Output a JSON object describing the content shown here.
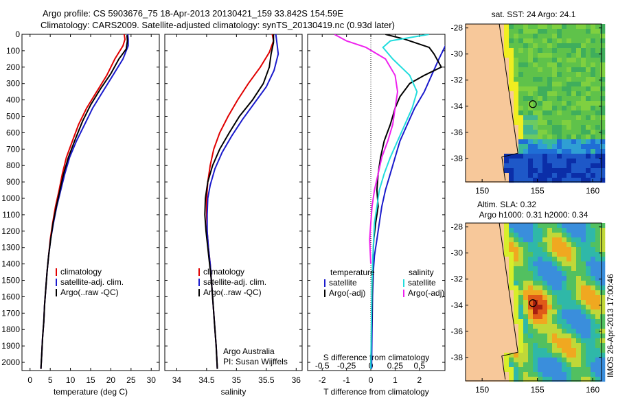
{
  "header": {
    "line1": "Argo profile: CS 5903676_75 18-Apr-2013 20130421_159 33.842S 154.59E",
    "line2": "Climatology: CARS2009. Satellite-adjusted climatology: synTS_20130419.nc (0.93d later)"
  },
  "colors": {
    "climatology": "#e00000",
    "satellite": "#1a1acc",
    "argo": "#000000",
    "s_sat": "#22dddd",
    "s_argo": "#ee22ee",
    "land": "#f7c89a"
  },
  "chart_data": [
    {
      "type": "line",
      "id": "temperature",
      "xlabel": "temperature (deg C)",
      "ylabel": "",
      "xlim": [
        -2,
        32
      ],
      "ylim": [
        2050,
        0
      ],
      "xticks": [
        "0",
        "5",
        "10",
        "15",
        "20",
        "25",
        "30"
      ],
      "xtick_values": [
        0,
        5,
        10,
        15,
        20,
        25,
        30
      ],
      "yticks": [
        "0",
        "100",
        "200",
        "300",
        "400",
        "500",
        "600",
        "700",
        "800",
        "900",
        "1000",
        "1100",
        "1200",
        "1300",
        "1400",
        "1500",
        "1600",
        "1700",
        "1800",
        "1900",
        "2000"
      ],
      "legend": [
        "climatology",
        "satellite-adj. clim.",
        "Argo(..raw -QC)"
      ],
      "series": [
        {
          "name": "climatology",
          "color_key": "climatology",
          "points": [
            [
              23.3,
              0
            ],
            [
              23.5,
              30
            ],
            [
              23,
              70
            ],
            [
              21,
              150
            ],
            [
              19,
              250
            ],
            [
              16.5,
              350
            ],
            [
              14,
              450
            ],
            [
              12,
              550
            ],
            [
              10.5,
              650
            ],
            [
              9,
              750
            ],
            [
              8,
              850
            ],
            [
              7.2,
              950
            ],
            [
              6.3,
              1050
            ],
            [
              5.6,
              1150
            ],
            [
              5,
              1250
            ],
            [
              4.6,
              1350
            ],
            [
              4.2,
              1450
            ],
            [
              3.9,
              1550
            ],
            [
              3.6,
              1650
            ],
            [
              3.4,
              1750
            ],
            [
              3.1,
              1850
            ],
            [
              2.9,
              1950
            ],
            [
              2.7,
              2040
            ]
          ]
        },
        {
          "name": "satellite-adj. clim.",
          "color_key": "satellite",
          "points": [
            [
              24.2,
              0
            ],
            [
              24.3,
              30
            ],
            [
              24.3,
              70
            ],
            [
              23,
              150
            ],
            [
              20.5,
              250
            ],
            [
              18,
              350
            ],
            [
              15.5,
              450
            ],
            [
              13.5,
              550
            ],
            [
              11.5,
              650
            ],
            [
              9.8,
              750
            ],
            [
              8.6,
              850
            ],
            [
              7.6,
              950
            ],
            [
              6.6,
              1050
            ],
            [
              5.8,
              1150
            ],
            [
              5.1,
              1250
            ],
            [
              4.6,
              1350
            ],
            [
              4.2,
              1450
            ],
            [
              3.9,
              1550
            ],
            [
              3.6,
              1650
            ],
            [
              3.4,
              1750
            ],
            [
              3.1,
              1850
            ],
            [
              2.9,
              1950
            ],
            [
              2.7,
              2040
            ]
          ]
        },
        {
          "name": "Argo(..raw -QC)",
          "color_key": "argo",
          "points": [
            [
              24,
              5
            ],
            [
              24.1,
              40
            ],
            [
              23.8,
              90
            ],
            [
              22,
              150
            ],
            [
              20,
              240
            ],
            [
              17.5,
              330
            ],
            [
              15,
              430
            ],
            [
              13,
              530
            ],
            [
              11.2,
              640
            ],
            [
              9.5,
              750
            ],
            [
              8.3,
              850
            ],
            [
              7.4,
              950
            ],
            [
              6.5,
              1050
            ],
            [
              5.7,
              1150
            ],
            [
              5.1,
              1250
            ],
            [
              4.6,
              1350
            ],
            [
              4.2,
              1450
            ],
            [
              3.9,
              1550
            ],
            [
              3.6,
              1650
            ],
            [
              3.4,
              1750
            ],
            [
              3.1,
              1850
            ],
            [
              2.9,
              1950
            ],
            [
              2.7,
              2040
            ]
          ]
        }
      ]
    },
    {
      "type": "line",
      "id": "salinity",
      "xlabel": "salinity",
      "ylabel": "",
      "xlim": [
        33.8,
        36.1
      ],
      "ylim": [
        2050,
        0
      ],
      "xticks": [
        "34",
        "34.5",
        "35",
        "35.5",
        "36"
      ],
      "xtick_values": [
        34,
        34.5,
        35,
        35.5,
        36
      ],
      "legend": [
        "climatology",
        "satellite-adj. clim.",
        "Argo(..raw -QC)"
      ],
      "annotation": [
        "Argo Australia",
        "PI: Susan Wijffels"
      ],
      "series": [
        {
          "name": "climatology",
          "color_key": "climatology",
          "points": [
            [
              35.6,
              0
            ],
            [
              35.62,
              40
            ],
            [
              35.55,
              110
            ],
            [
              35.4,
              200
            ],
            [
              35.2,
              300
            ],
            [
              35.02,
              400
            ],
            [
              34.86,
              500
            ],
            [
              34.72,
              600
            ],
            [
              34.62,
              700
            ],
            [
              34.56,
              800
            ],
            [
              34.52,
              900
            ],
            [
              34.5,
              1000
            ],
            [
              34.5,
              1100
            ],
            [
              34.51,
              1200
            ],
            [
              34.53,
              1300
            ],
            [
              34.56,
              1400
            ],
            [
              34.58,
              1500
            ],
            [
              34.6,
              1600
            ],
            [
              34.62,
              1700
            ],
            [
              34.64,
              1800
            ],
            [
              34.66,
              1900
            ],
            [
              34.68,
              2040
            ]
          ]
        },
        {
          "name": "satellite-adj. clim.",
          "color_key": "satellite",
          "points": [
            [
              35.66,
              0
            ],
            [
              35.68,
              60
            ],
            [
              35.7,
              120
            ],
            [
              35.63,
              220
            ],
            [
              35.5,
              320
            ],
            [
              35.3,
              420
            ],
            [
              35.1,
              520
            ],
            [
              34.92,
              620
            ],
            [
              34.76,
              720
            ],
            [
              34.64,
              820
            ],
            [
              34.56,
              920
            ],
            [
              34.52,
              1000
            ],
            [
              34.51,
              1100
            ],
            [
              34.51,
              1200
            ],
            [
              34.53,
              1300
            ],
            [
              34.56,
              1400
            ],
            [
              34.58,
              1500
            ],
            [
              34.6,
              1600
            ],
            [
              34.62,
              1700
            ],
            [
              34.64,
              1800
            ],
            [
              34.66,
              1900
            ],
            [
              34.68,
              2040
            ]
          ]
        },
        {
          "name": "Argo(..raw -QC)",
          "color_key": "argo",
          "points": [
            [
              35.62,
              0
            ],
            [
              35.62,
              50
            ],
            [
              35.58,
              120
            ],
            [
              35.55,
              200
            ],
            [
              35.45,
              300
            ],
            [
              35.27,
              400
            ],
            [
              35.05,
              500
            ],
            [
              34.88,
              600
            ],
            [
              34.72,
              700
            ],
            [
              34.6,
              800
            ],
            [
              34.52,
              900
            ],
            [
              34.48,
              1000
            ],
            [
              34.47,
              1100
            ],
            [
              34.49,
              1200
            ],
            [
              34.52,
              1300
            ],
            [
              34.55,
              1400
            ],
            [
              34.58,
              1500
            ],
            [
              34.6,
              1600
            ],
            [
              34.62,
              1700
            ],
            [
              34.64,
              1800
            ],
            [
              34.66,
              1900
            ],
            [
              34.68,
              2040
            ]
          ]
        }
      ]
    },
    {
      "type": "line",
      "id": "difference",
      "xlabel": "T difference from climatology",
      "xlabel_top": "S difference from climatology",
      "xlim": [
        -2.6,
        3.05
      ],
      "ylim": [
        2050,
        0
      ],
      "xticks": [
        "-2",
        "-1",
        "0",
        "1",
        "2"
      ],
      "xtick_values": [
        -2,
        -1,
        0,
        1,
        2
      ],
      "xticks2": [
        "-0.5",
        "-0.25",
        "0",
        "0.25",
        "0.5"
      ],
      "xtick2_values": [
        -2,
        -1,
        0,
        1,
        2
      ],
      "legend_t_title": "temperature",
      "legend_s_title": "salinity",
      "legend": [
        "satellite",
        "Argo(-adj)",
        "satellite",
        "Argo(-adj)"
      ],
      "series": [
        {
          "name": "satellite",
          "color_key": "satellite",
          "points": [
            [
              3.1,
              60
            ],
            [
              3.0,
              90
            ],
            [
              2.8,
              150
            ],
            [
              2.5,
              250
            ],
            [
              2.2,
              350
            ],
            [
              1.8,
              450
            ],
            [
              1.5,
              550
            ],
            [
              1.2,
              650
            ],
            [
              1,
              750
            ],
            [
              0.8,
              850
            ],
            [
              0.6,
              950
            ],
            [
              0.45,
              1050
            ],
            [
              0.35,
              1150
            ],
            [
              0.25,
              1250
            ],
            [
              0.15,
              1350
            ],
            [
              0.1,
              1450
            ],
            [
              0.07,
              1600
            ],
            [
              0.05,
              1800
            ],
            [
              0.03,
              2040
            ]
          ]
        },
        {
          "name": "Argo(-adj)",
          "color_key": "argo",
          "points": [
            [
              0.6,
              0
            ],
            [
              1.4,
              30
            ],
            [
              2,
              60
            ],
            [
              2.4,
              80
            ],
            [
              2.6,
              120
            ],
            [
              2.9,
              200
            ],
            [
              2.2,
              250
            ],
            [
              1.6,
              300
            ],
            [
              1.2,
              380
            ],
            [
              1,
              450
            ],
            [
              0.8,
              550
            ],
            [
              0.55,
              650
            ],
            [
              0.4,
              750
            ],
            [
              0.3,
              850
            ],
            [
              0.25,
              950
            ],
            [
              0.3,
              1050
            ],
            [
              0.2,
              1150
            ],
            [
              0.12,
              1250
            ],
            [
              0.08,
              1400
            ],
            [
              0.05,
              1600
            ],
            [
              0.03,
              1800
            ],
            [
              0,
              2040
            ]
          ]
        },
        {
          "name": "satellite",
          "color_key": "s_sat",
          "points": [
            [
              2.4,
              0
            ],
            [
              0.8,
              40
            ],
            [
              0.5,
              80
            ],
            [
              0.9,
              150
            ],
            [
              1.6,
              250
            ],
            [
              1.9,
              350
            ],
            [
              1.7,
              450
            ],
            [
              1.4,
              550
            ],
            [
              1.1,
              650
            ],
            [
              0.8,
              750
            ],
            [
              0.55,
              850
            ],
            [
              0.35,
              950
            ],
            [
              0.25,
              1050
            ],
            [
              0.15,
              1150
            ],
            [
              0.1,
              1300
            ],
            [
              0.05,
              1500
            ],
            [
              0.03,
              1700
            ],
            [
              0,
              2040
            ]
          ]
        },
        {
          "name": "Argo(-adj)",
          "color_key": "s_argo",
          "points": [
            [
              -1.5,
              0
            ],
            [
              -1,
              40
            ],
            [
              -0.2,
              80
            ],
            [
              0.6,
              150
            ],
            [
              1.0,
              250
            ],
            [
              1.1,
              350
            ],
            [
              1.0,
              450
            ],
            [
              0.9,
              550
            ],
            [
              0.7,
              650
            ],
            [
              0.45,
              750
            ],
            [
              0.3,
              850
            ],
            [
              0.15,
              950
            ],
            [
              0.05,
              1050
            ],
            [
              0,
              1150
            ],
            [
              -0.05,
              1250
            ],
            [
              0,
              1400
            ]
          ]
        }
      ]
    }
  ],
  "maps": [
    {
      "id": "sst",
      "title": "sat. SST: 24 Argo: 24.1",
      "lon": [
        148.5,
        160.8
      ],
      "lat": [
        -39.8,
        -27.7
      ],
      "xticks": [
        "150",
        "155",
        "160"
      ],
      "yticks": [
        "-28",
        "-30",
        "-32",
        "-34",
        "-36",
        "-38"
      ],
      "float_lon": 154.59,
      "float_lat": -33.842
    },
    {
      "id": "sla",
      "title1": "Altim. SLA: 0.32",
      "title2": "Argo h1000: 0.31 h2000: 0.34",
      "lon": [
        148.5,
        160.8
      ],
      "lat": [
        -39.8,
        -27.7
      ],
      "xticks": [
        "150",
        "155",
        "160"
      ],
      "yticks": [
        "-28",
        "-30",
        "-32",
        "-34",
        "-36",
        "-38"
      ],
      "float_lon": 154.59,
      "float_lat": -33.842
    }
  ],
  "credit": "IMOS 26-Apr-2013 17:00:46"
}
